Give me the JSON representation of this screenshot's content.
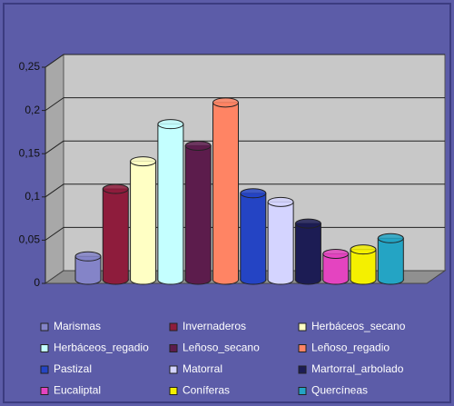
{
  "chart_data": {
    "type": "bar3d",
    "categories": [
      "Marismas",
      "Invernaderos",
      "Herbáceos_secano",
      "Herbáceos_regadio",
      "Leñoso_secano",
      "Leñoso_regadio",
      "Pastizal",
      "Matorral",
      "Martorral_arbolado",
      "Eucaliptal",
      "Coníferas",
      "Quercíneas"
    ],
    "values": [
      0.027,
      0.105,
      0.137,
      0.18,
      0.155,
      0.205,
      0.1,
      0.09,
      0.065,
      0.03,
      0.035,
      0.048
    ],
    "colors": [
      "#8484c8",
      "#8e1c3c",
      "#ffffc4",
      "#c4ffff",
      "#5c1c4c",
      "#ff8464",
      "#2444c4",
      "#d4d4ff",
      "#1c1c54",
      "#e444c0",
      "#f4f000",
      "#24a4c4"
    ],
    "ylim": [
      0,
      0.25
    ],
    "yticks": [
      0,
      {
        "value": 0.05,
        "label": "0,05"
      },
      {
        "value": 0.1,
        "label": "0,1"
      },
      {
        "value": 0.15,
        "label": "0,15"
      },
      {
        "value": 0.2,
        "label": "0,2"
      },
      {
        "value": 0.25,
        "label": "0,25"
      }
    ],
    "grid": true
  }
}
